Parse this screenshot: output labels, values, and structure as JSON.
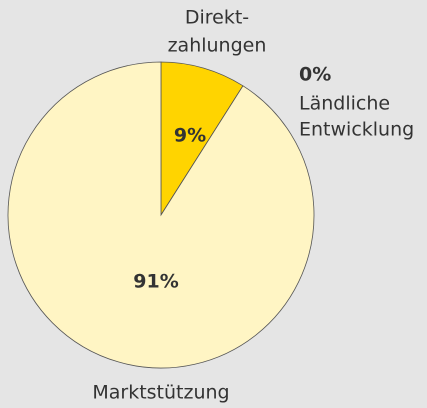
{
  "chart_data": {
    "type": "pie",
    "categories": [
      [
        "Direkt-",
        "zahlungen"
      ],
      [
        "Ländliche",
        "Entwicklung"
      ],
      [
        "Marktstützung"
      ]
    ],
    "values": [
      9,
      0,
      91
    ],
    "value_labels": [
      "9%",
      "0%",
      "91%"
    ],
    "colors": [
      "#ffd400",
      "#ffe680",
      "#fff5c4"
    ]
  }
}
